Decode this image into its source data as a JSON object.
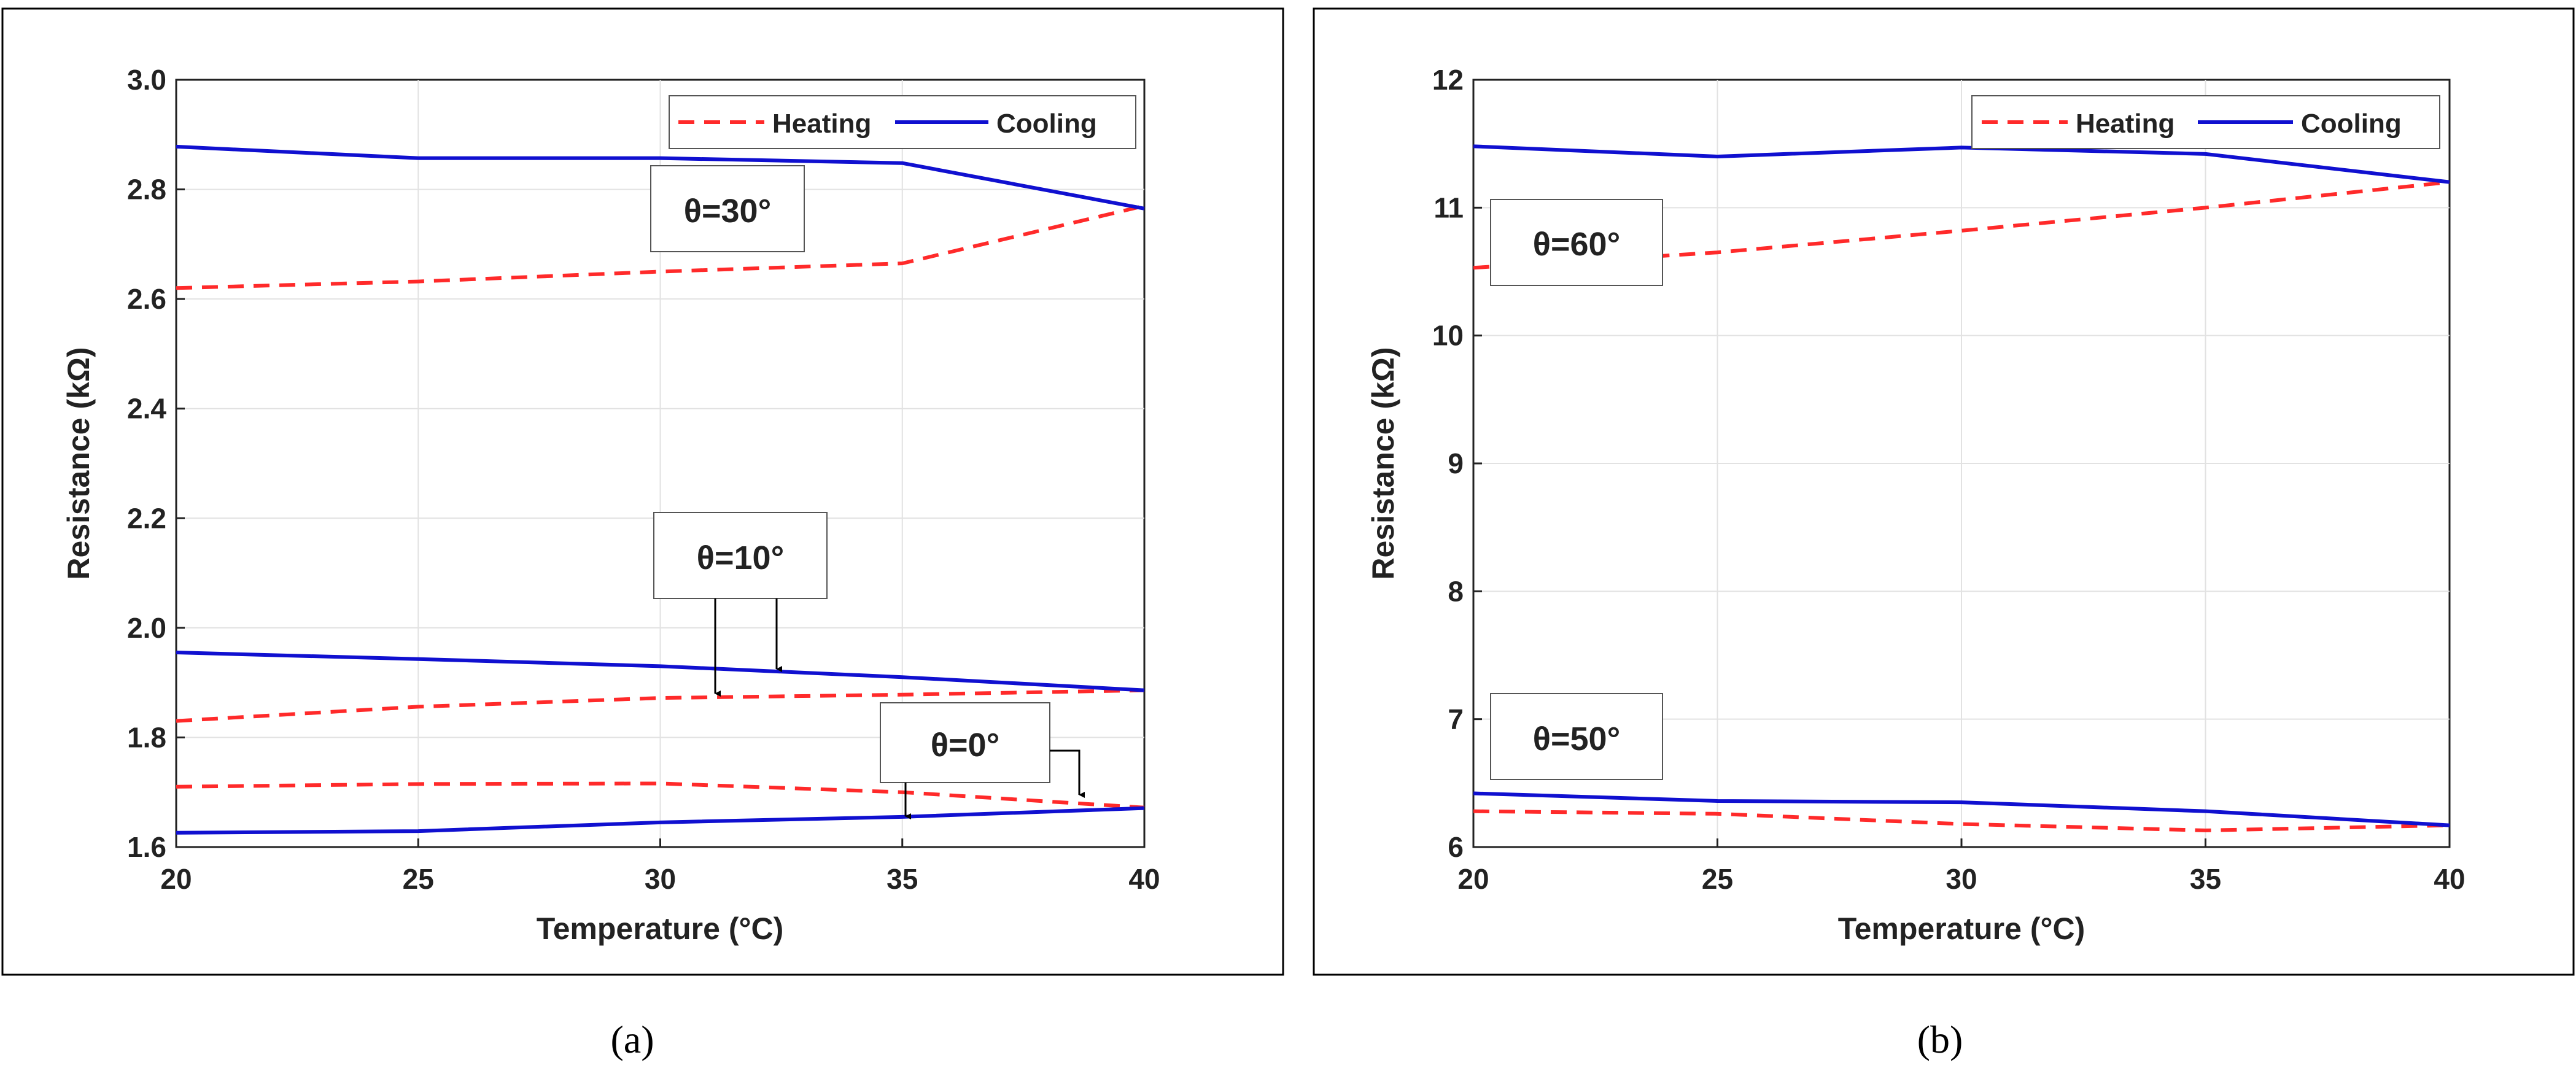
{
  "chart_data": [
    {
      "type": "line",
      "panel": "a",
      "caption": "(a)",
      "xlabel": "Temperature (°C)",
      "ylabel": "Resistance (kΩ)",
      "xlim": [
        20,
        40
      ],
      "ylim": [
        1.6,
        3.0
      ],
      "xticks": [
        20,
        25,
        30,
        35,
        40
      ],
      "yticks": [
        1.6,
        1.8,
        2.0,
        2.2,
        2.4,
        2.6,
        2.8,
        3.0
      ],
      "ytick_labels": [
        "1.6",
        "1.8",
        "2.0",
        "2.2",
        "2.4",
        "2.6",
        "2.8",
        "3.0"
      ],
      "grid": true,
      "legend": [
        "Heating",
        "Cooling"
      ],
      "legend_position": "top-right",
      "x": [
        20,
        25,
        30,
        35,
        40
      ],
      "series": [
        {
          "name": "Heating θ=30°",
          "style": "dashed",
          "color": "#ff2a2a",
          "values": [
            2.62,
            2.632,
            2.65,
            2.665,
            2.77
          ]
        },
        {
          "name": "Cooling θ=30°",
          "style": "solid",
          "color": "#1010d0",
          "values": [
            2.878,
            2.857,
            2.857,
            2.848,
            2.765
          ]
        },
        {
          "name": "Heating θ=10°",
          "style": "dashed",
          "color": "#ff2a2a",
          "values": [
            1.83,
            1.856,
            1.872,
            1.878,
            1.886
          ]
        },
        {
          "name": "Cooling θ=10°",
          "style": "solid",
          "color": "#1010d0",
          "values": [
            1.955,
            1.943,
            1.93,
            1.91,
            1.886
          ]
        },
        {
          "name": "Heating θ=0°",
          "style": "dashed",
          "color": "#ff2a2a",
          "values": [
            1.71,
            1.715,
            1.716,
            1.7,
            1.672
          ]
        },
        {
          "name": "Cooling θ=0°",
          "style": "solid",
          "color": "#1010d0",
          "values": [
            1.626,
            1.629,
            1.645,
            1.655,
            1.671
          ]
        }
      ],
      "annotations": [
        {
          "text": "θ=30°"
        },
        {
          "text": "θ=10°"
        },
        {
          "text": "θ=0°"
        }
      ]
    },
    {
      "type": "line",
      "panel": "b",
      "caption": "(b)",
      "xlabel": "Temperature (°C)",
      "ylabel": "Resistance (kΩ)",
      "xlim": [
        20,
        40
      ],
      "ylim": [
        6,
        12
      ],
      "xticks": [
        20,
        25,
        30,
        35,
        40
      ],
      "yticks": [
        6,
        7,
        8,
        9,
        10,
        11,
        12
      ],
      "ytick_labels": [
        "6",
        "7",
        "8",
        "9",
        "10",
        "11",
        "12"
      ],
      "grid": true,
      "legend": [
        "Heating",
        "Cooling"
      ],
      "legend_position": "top-right",
      "x": [
        20,
        25,
        30,
        35,
        40
      ],
      "series": [
        {
          "name": "Heating θ=60°",
          "style": "dashed",
          "color": "#ff2a2a",
          "values": [
            10.53,
            10.65,
            10.82,
            11.0,
            11.2
          ]
        },
        {
          "name": "Cooling θ=60°",
          "style": "solid",
          "color": "#1010d0",
          "values": [
            11.48,
            11.4,
            11.47,
            11.42,
            11.2
          ]
        },
        {
          "name": "Heating θ=50°",
          "style": "dashed",
          "color": "#ff2a2a",
          "values": [
            6.28,
            6.26,
            6.18,
            6.13,
            6.17
          ]
        },
        {
          "name": "Cooling θ=50°",
          "style": "solid",
          "color": "#1010d0",
          "values": [
            6.42,
            6.36,
            6.35,
            6.28,
            6.17
          ]
        }
      ],
      "annotations": [
        {
          "text": "θ=60°"
        },
        {
          "text": "θ=50°"
        }
      ]
    }
  ]
}
